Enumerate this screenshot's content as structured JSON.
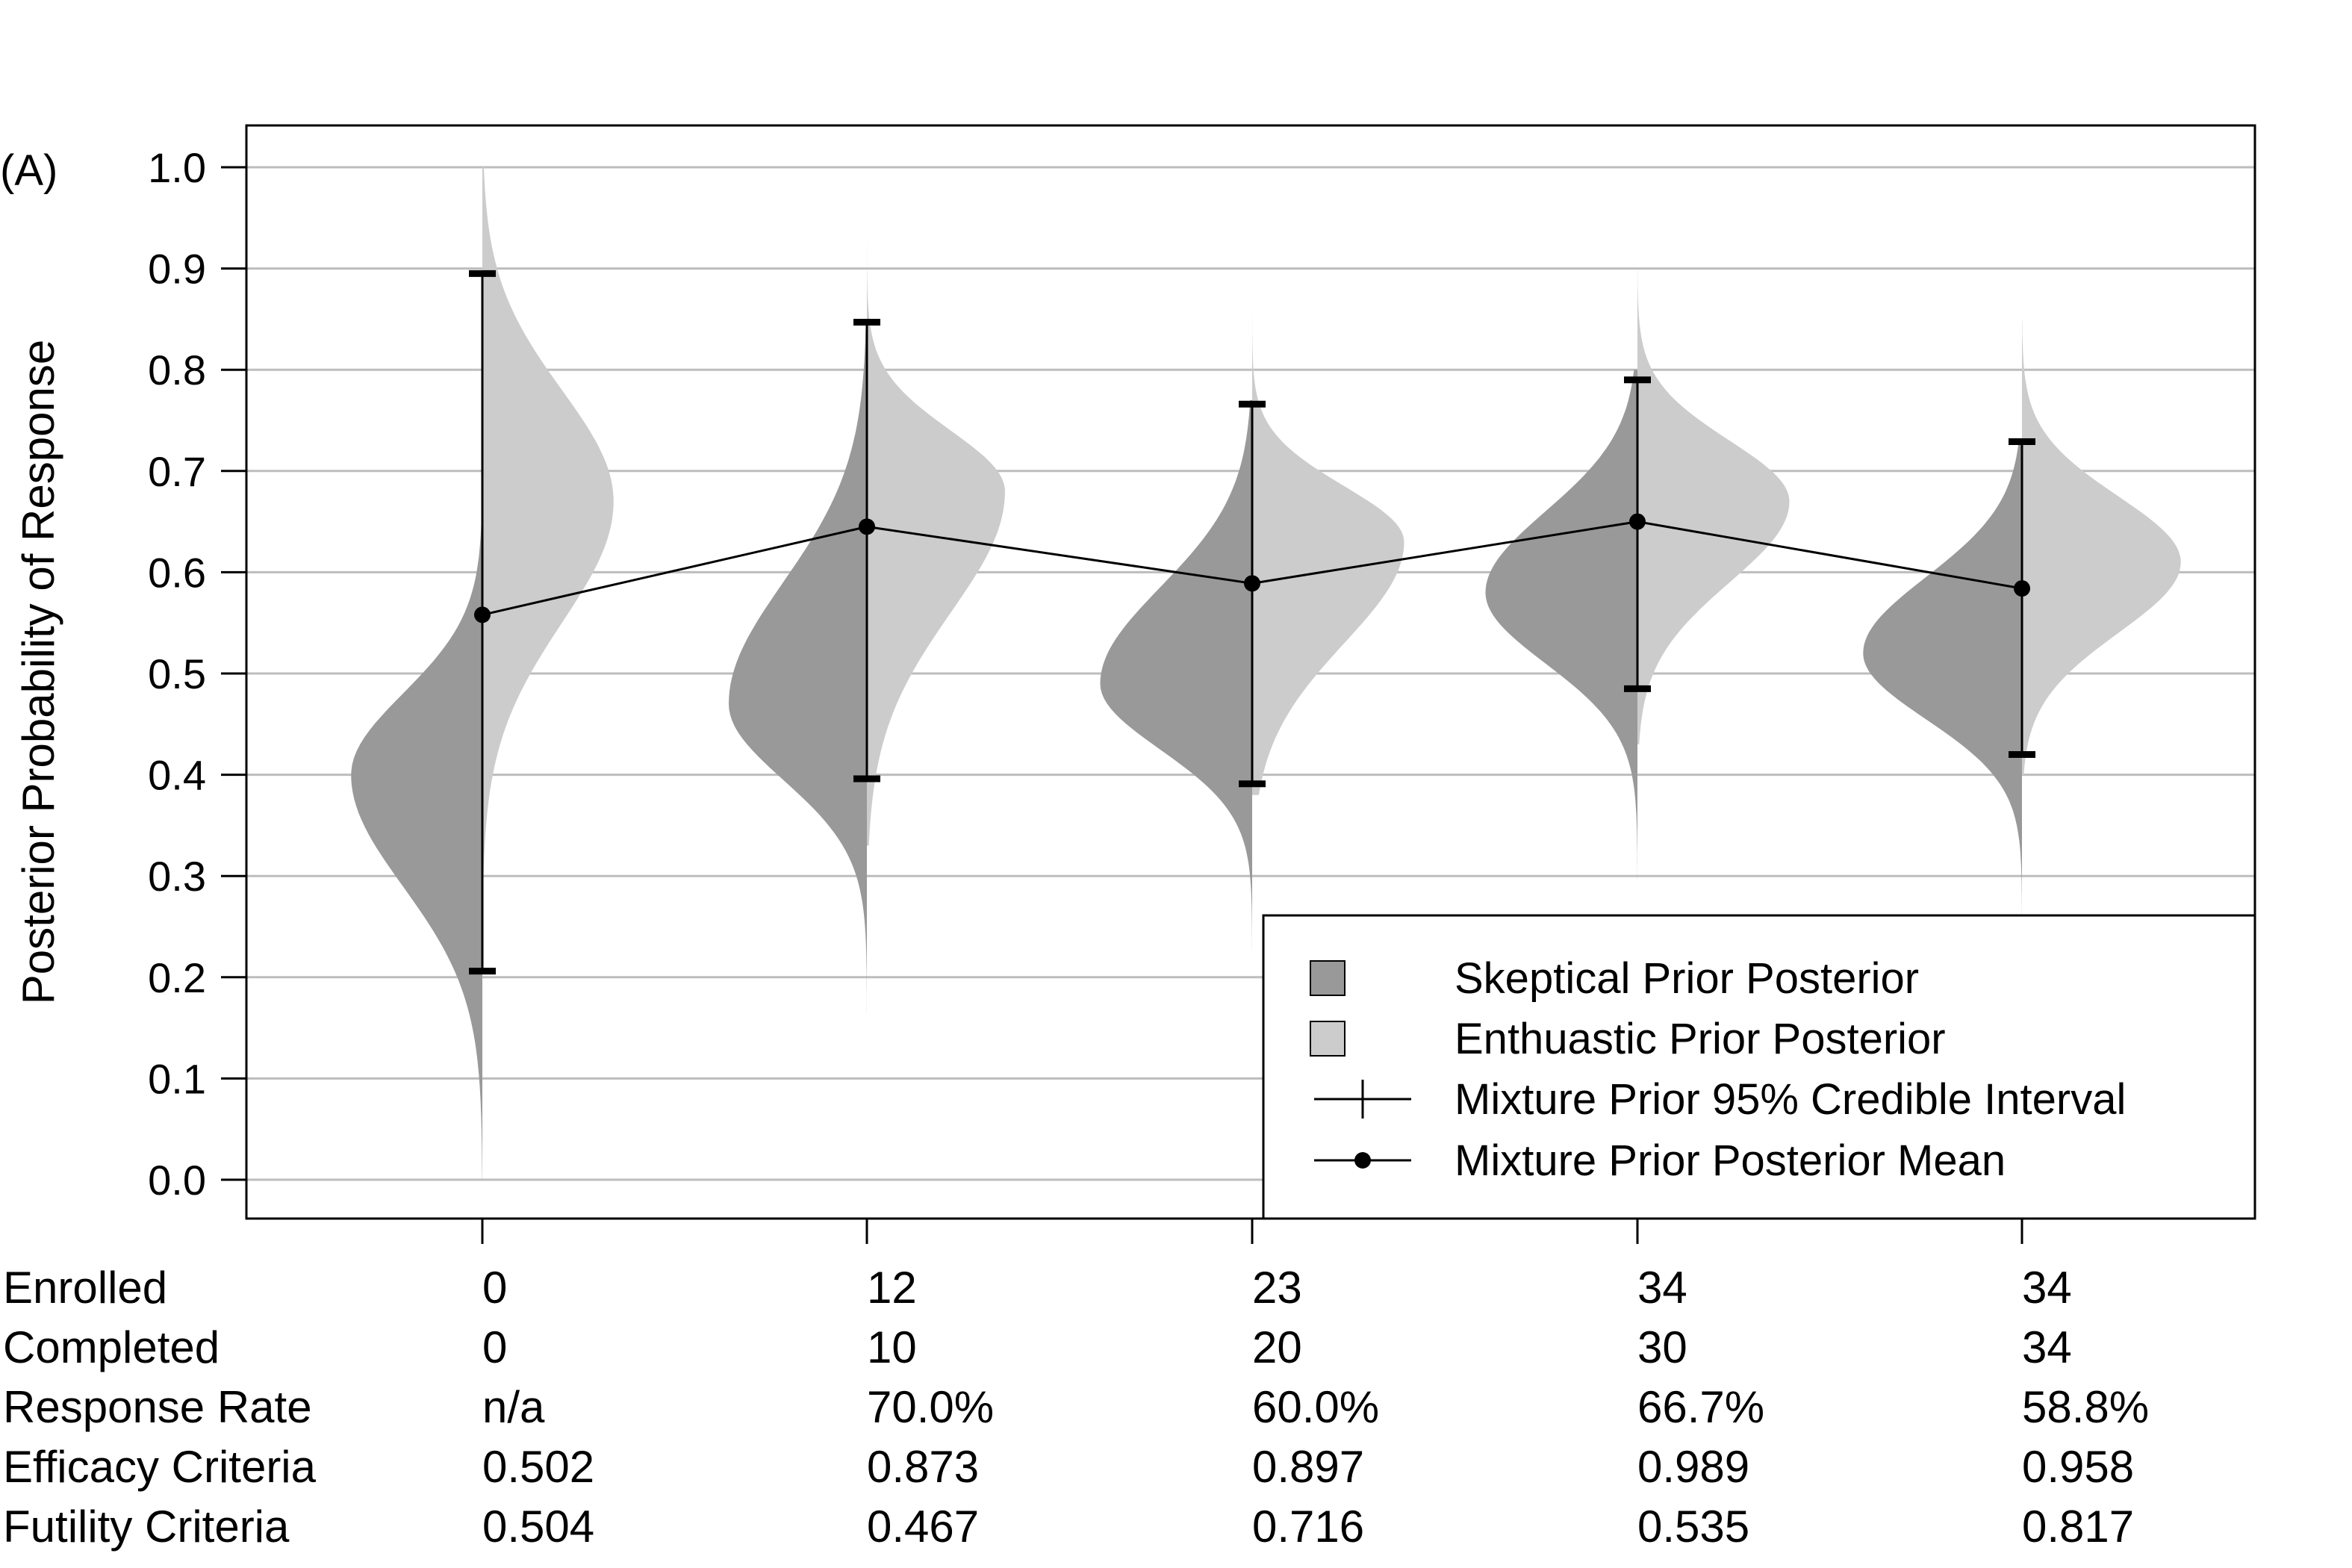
{
  "chart_data": {
    "type": "violin",
    "panel_label": "(A)",
    "ylabel": "Posterior Probability of Response",
    "ylim": [
      0,
      1
    ],
    "yticks": [
      "0.0",
      "0.1",
      "0.2",
      "0.3",
      "0.4",
      "0.5",
      "0.6",
      "0.7",
      "0.8",
      "0.9",
      "1.0"
    ],
    "grid": "horizontal",
    "legend": {
      "position": "bottom-right",
      "entries": [
        {
          "label": "Skeptical Prior Posterior",
          "color": "#999999",
          "symbol": "box"
        },
        {
          "label": "Enthuastic Prior Posterior",
          "color": "#cccccc",
          "symbol": "box"
        },
        {
          "label": "Mixture Prior 95% Credible Interval",
          "symbol": "line-tick"
        },
        {
          "label": "Mixture Prior Posterior Mean",
          "symbol": "line-dot"
        }
      ]
    },
    "colors": {
      "skeptical": "#999999",
      "enthusiastic": "#cccccc",
      "grid": "#bdbdbd"
    },
    "interims": [
      {
        "skeptical": {
          "mode": 0.4,
          "sd_low": 0.11,
          "sd_high": 0.08,
          "min": 0.0,
          "max": 0.82,
          "width": 0.95
        },
        "enthusiastic": {
          "mode": 0.67,
          "sd_low": 0.12,
          "sd_high": 0.11,
          "min": 0.26,
          "max": 1.0,
          "width": 0.95
        },
        "mean": 0.558,
        "ci": [
          0.206,
          0.895
        ]
      },
      {
        "skeptical": {
          "mode": 0.47,
          "sd_low": 0.075,
          "sd_high": 0.12,
          "min": 0.15,
          "max": 0.85,
          "width": 1.0
        },
        "enthusiastic": {
          "mode": 0.68,
          "sd_low": 0.12,
          "sd_high": 0.06,
          "min": 0.33,
          "max": 0.97,
          "width": 1.0
        },
        "mean": 0.645,
        "ci": [
          0.396,
          0.847
        ]
      },
      {
        "skeptical": {
          "mode": 0.49,
          "sd_low": 0.065,
          "sd_high": 0.095,
          "min": 0.18,
          "max": 0.77,
          "width": 1.1
        },
        "enthusiastic": {
          "mode": 0.63,
          "sd_low": 0.1,
          "sd_high": 0.055,
          "min": 0.38,
          "max": 0.9,
          "width": 1.1
        },
        "mean": 0.589,
        "ci": [
          0.391,
          0.766
        ]
      },
      {
        "skeptical": {
          "mode": 0.58,
          "sd_low": 0.07,
          "sd_high": 0.08,
          "min": 0.28,
          "max": 0.8,
          "width": 1.1
        },
        "enthusiastic": {
          "mode": 0.67,
          "sd_low": 0.08,
          "sd_high": 0.06,
          "min": 0.43,
          "max": 0.9,
          "width": 1.1
        },
        "mean": 0.65,
        "ci": [
          0.485,
          0.79
        ]
      },
      {
        "skeptical": {
          "mode": 0.52,
          "sd_low": 0.065,
          "sd_high": 0.075,
          "min": 0.26,
          "max": 0.73,
          "width": 1.15
        },
        "enthusiastic": {
          "mode": 0.61,
          "sd_low": 0.07,
          "sd_high": 0.065,
          "min": 0.4,
          "max": 0.85,
          "width": 1.15
        },
        "mean": 0.584,
        "ci": [
          0.42,
          0.729
        ]
      }
    ]
  },
  "table": {
    "row_labels": [
      "Enrolled",
      "Completed",
      "Response Rate",
      "Efficacy Criteria",
      "Futility Criteria"
    ],
    "columns": [
      [
        "0",
        "0",
        "n/a",
        "0.502",
        "0.504"
      ],
      [
        "12",
        "10",
        "70.0%",
        "0.873",
        "0.467"
      ],
      [
        "23",
        "20",
        "60.0%",
        "0.897",
        "0.716"
      ],
      [
        "34",
        "30",
        "66.7%",
        "0.989",
        "0.535"
      ],
      [
        "34",
        "34",
        "58.8%",
        "0.958",
        "0.817"
      ]
    ]
  }
}
